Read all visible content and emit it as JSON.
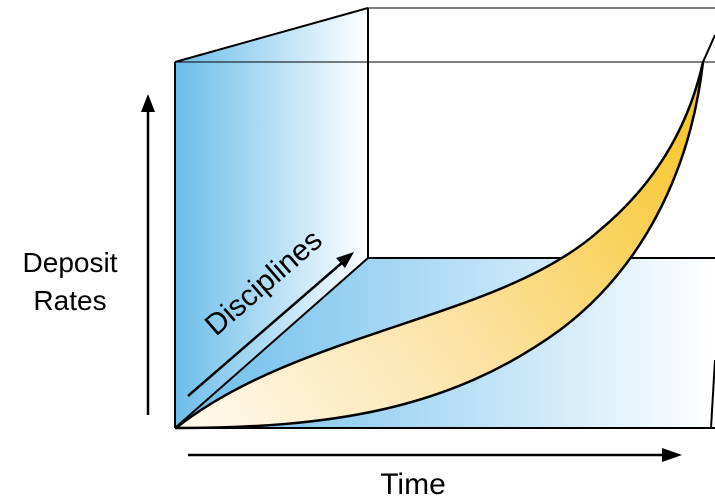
{
  "diagram": {
    "y_axis_label_line1": "Deposit",
    "y_axis_label_line2": "Rates",
    "depth_axis_label": "Disciplines",
    "x_axis_label": "Time"
  },
  "colors": {
    "left_wall": "#6cbdea",
    "floor": "#6cbdea",
    "envelope_fill": "#f8c420",
    "envelope_fill_light": "#fffaf0",
    "outline": "#000000"
  }
}
